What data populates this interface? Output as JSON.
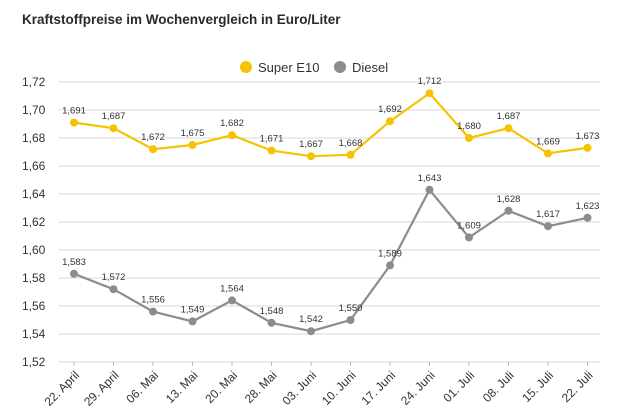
{
  "title": "Kraftstoffpreise im Wochenvergleich in Euro/Liter",
  "chart_data": {
    "type": "line",
    "title": "Kraftstoffpreise im Wochenvergleich in Euro/Liter",
    "xlabel": "",
    "ylabel": "",
    "ylim": [
      1.52,
      1.72
    ],
    "yticks": [
      "1,52",
      "1,54",
      "1,56",
      "1,58",
      "1,60",
      "1,62",
      "1,64",
      "1,66",
      "1,68",
      "1,70",
      "1,72"
    ],
    "categories": [
      "22. April",
      "29. April",
      "06. Mai",
      "13. Mai",
      "20. Mai",
      "28. Mai",
      "03. Juni",
      "10. Juni",
      "17. Juni",
      "24. Juni",
      "01. Juli",
      "08. Juli",
      "15. Juli",
      "22. Juli"
    ],
    "grid": true,
    "legend_position": "top-center",
    "series": [
      {
        "name": "Super E10",
        "color": "#f5c400",
        "values": [
          1.691,
          1.687,
          1.672,
          1.675,
          1.682,
          1.671,
          1.667,
          1.668,
          1.692,
          1.712,
          1.68,
          1.687,
          1.669,
          1.673
        ],
        "labels": [
          "1,691",
          "1,687",
          "1,672",
          "1,675",
          "1,682",
          "1,671",
          "1,667",
          "1,668",
          "1,692",
          "1,712",
          "1,680",
          "1,687",
          "1,669",
          "1,673"
        ]
      },
      {
        "name": "Diesel",
        "color": "#8c8c8c",
        "values": [
          1.583,
          1.572,
          1.556,
          1.549,
          1.564,
          1.548,
          1.542,
          1.55,
          1.589,
          1.643,
          1.609,
          1.628,
          1.617,
          1.623
        ],
        "labels": [
          "1,583",
          "1,572",
          "1,556",
          "1,549",
          "1,564",
          "1,548",
          "1,542",
          "1,550",
          "1,589",
          "1,643",
          "1,609",
          "1,628",
          "1,617",
          "1,623"
        ]
      }
    ]
  }
}
